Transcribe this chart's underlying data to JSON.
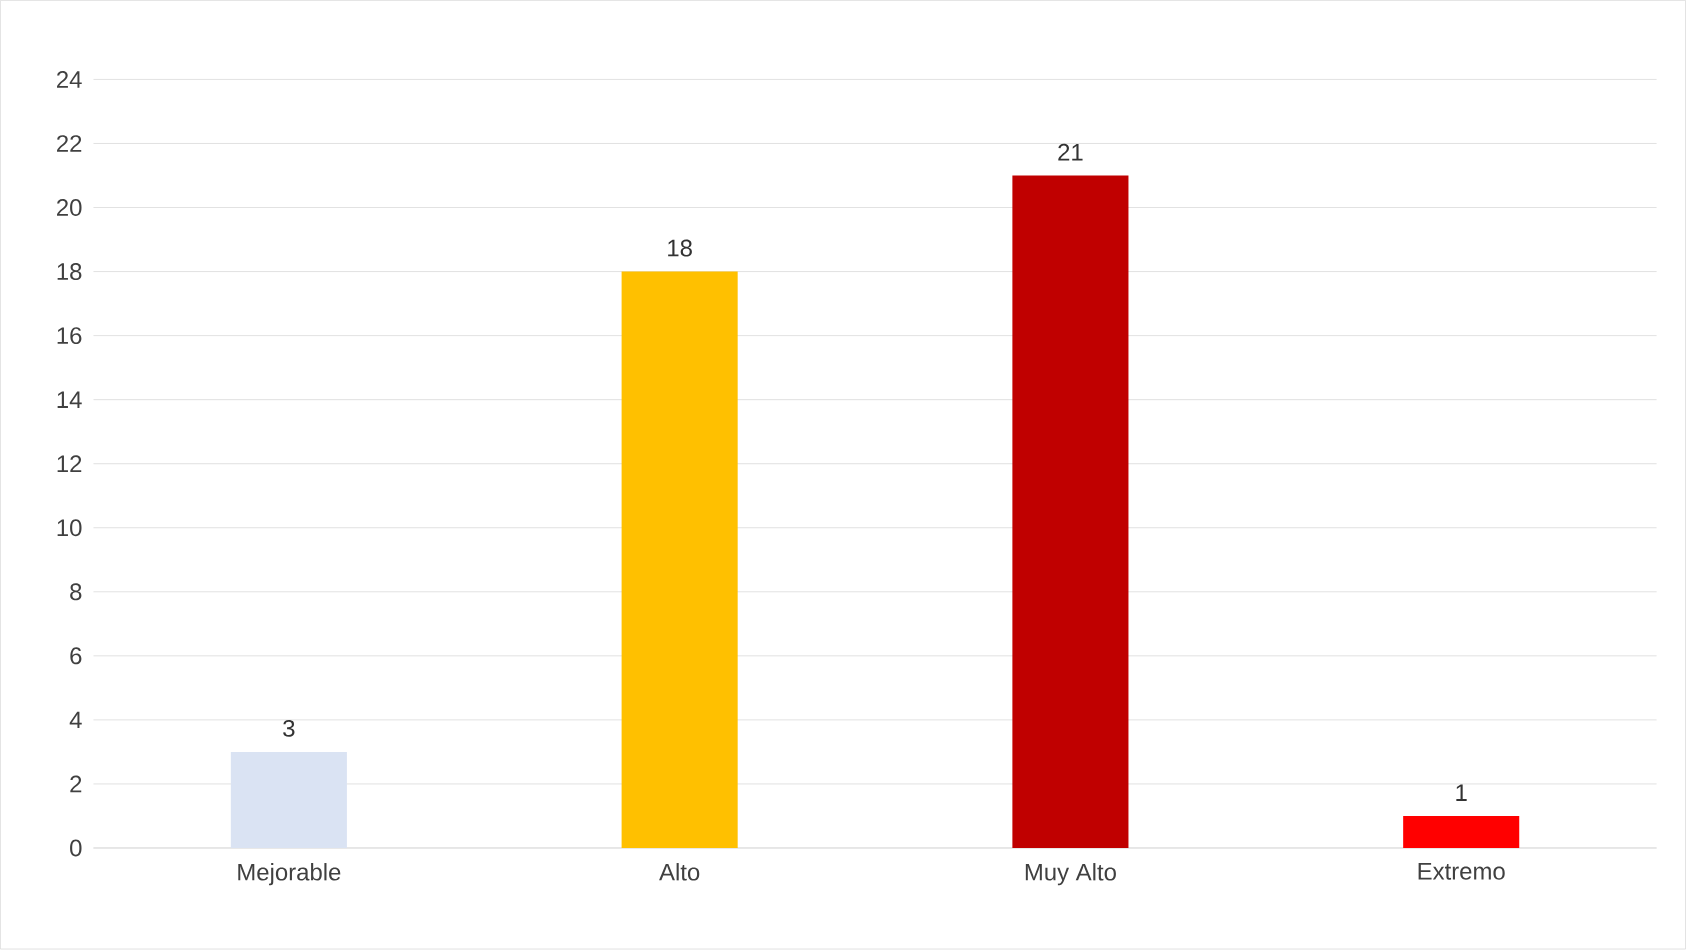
{
  "chart_data": {
    "type": "bar",
    "categories": [
      "Mejorable",
      "Alto",
      "Muy Alto",
      "Extremo"
    ],
    "values": [
      3,
      18,
      21,
      1
    ],
    "colors": [
      "#dae3f3",
      "#ffc000",
      "#c00000",
      "#ff0000"
    ],
    "ylim": [
      0,
      24
    ],
    "yticks": [
      0,
      2,
      4,
      6,
      8,
      10,
      12,
      14,
      16,
      18,
      20,
      22,
      24
    ],
    "grid": "y",
    "data_labels": true
  }
}
